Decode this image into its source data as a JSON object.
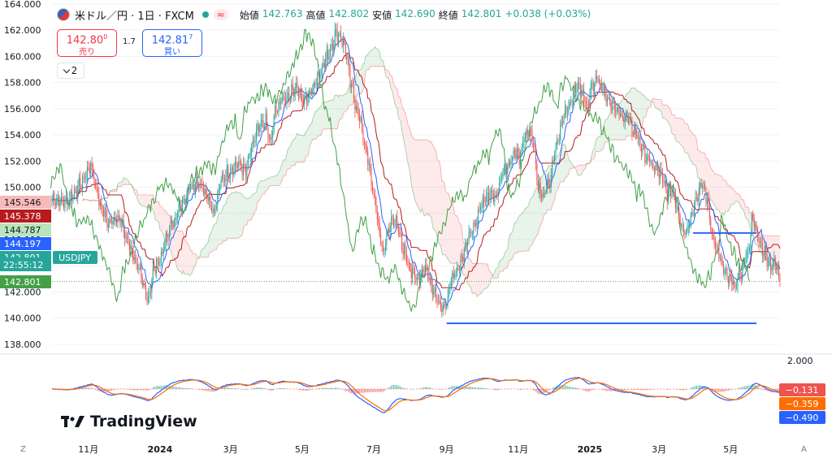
{
  "header": {
    "symbol_title": "米ドル／円 · 1日 · FXCM",
    "approx_symbol": "≈",
    "ohlc": [
      {
        "label": "始値",
        "value": "142.763"
      },
      {
        "label": "高値",
        "value": "142.802"
      },
      {
        "label": "安値",
        "value": "142.690"
      },
      {
        "label": "終値",
        "value": "142.801"
      }
    ],
    "change": "+0.038 (+0.03%)"
  },
  "trade": {
    "sell_price": "142.80",
    "sell_sup": "0",
    "sell_label": "売り",
    "spread": "1.7",
    "buy_price": "142.81",
    "buy_sup": "7",
    "buy_label": "買い"
  },
  "layers_count": "2",
  "branding": "TradingView",
  "bottom_bar": {
    "left": "Z",
    "right": "A"
  },
  "colors": {
    "up": "#26a69a",
    "down": "#ef5350",
    "conversion": "#2962ff",
    "base": "#b71c1c",
    "lagging": "#43a047",
    "macd": "#2962ff",
    "signal": "#ff6d00",
    "support": "#2962ff"
  },
  "chart_data": {
    "type": "candlestick",
    "price_axis": {
      "ticks": [
        "164.000",
        "162.000",
        "160.000",
        "158.000",
        "156.000",
        "154.000",
        "152.000",
        "150.000",
        "148.000",
        "146.000",
        "144.000",
        "142.000",
        "140.000",
        "138.000"
      ],
      "range": [
        137.5,
        164.3
      ]
    },
    "time_axis": {
      "labels": [
        "11月",
        "2024",
        "3月",
        "5月",
        "7月",
        "9月",
        "11月",
        "2025",
        "3月",
        "5月"
      ],
      "label_days": [
        31,
        92,
        152,
        213,
        274,
        336,
        397,
        458,
        517,
        578
      ],
      "day_range": [
        0,
        620
      ],
      "note": "label_days = trading-day index from 2023-10-01"
    },
    "price_badges": [
      {
        "label": "145.546",
        "value": 145.546,
        "color": "#f7b9b9",
        "text_color": "#131722"
      },
      {
        "label": "145.378",
        "value": 145.378,
        "color": "#b71c1c",
        "text_color": "#ffffff"
      },
      {
        "label": "144.787",
        "value": 144.787,
        "color": "#b9e4bd",
        "text_color": "#131722"
      },
      {
        "label": "144.197",
        "value": 144.197,
        "color": "#2962ff",
        "text_color": "#ffffff"
      },
      {
        "label": "142.801",
        "value": 142.801,
        "color": "#26a69a",
        "text_color": "#ffffff"
      },
      {
        "label": "142.801",
        "value": 142.801,
        "color": "#43a047",
        "text_color": "#ffffff"
      }
    ],
    "symbol_tag": "USDJPY",
    "countdown": "22:55:12",
    "last_price": 142.801,
    "support_lines": [
      {
        "from_day": 336,
        "to_day": 600,
        "value": 139.6
      },
      {
        "from_day": 546,
        "to_day": 600,
        "value": 146.5
      }
    ],
    "close_keypoints": [
      [
        0,
        149.2
      ],
      [
        12,
        148.8
      ],
      [
        25,
        150.3
      ],
      [
        33,
        151.7
      ],
      [
        40,
        149.0
      ],
      [
        48,
        147.2
      ],
      [
        56,
        147.8
      ],
      [
        64,
        146.0
      ],
      [
        72,
        144.2
      ],
      [
        78,
        142.3
      ],
      [
        82,
        141.5
      ],
      [
        86,
        143.5
      ],
      [
        94,
        145.0
      ],
      [
        100,
        146.8
      ],
      [
        108,
        148.2
      ],
      [
        116,
        149.8
      ],
      [
        124,
        150.5
      ],
      [
        132,
        149.5
      ],
      [
        138,
        148.0
      ],
      [
        144,
        150.5
      ],
      [
        150,
        151.2
      ],
      [
        158,
        151.8
      ],
      [
        165,
        151.2
      ],
      [
        170,
        153.0
      ],
      [
        176,
        154.5
      ],
      [
        182,
        155.0
      ],
      [
        186,
        153.2
      ],
      [
        190,
        155.8
      ],
      [
        196,
        156.7
      ],
      [
        202,
        157.0
      ],
      [
        208,
        157.8
      ],
      [
        214,
        156.5
      ],
      [
        220,
        157.2
      ],
      [
        226,
        158.5
      ],
      [
        232,
        159.5
      ],
      [
        238,
        160.8
      ],
      [
        242,
        161.8
      ],
      [
        246,
        161.5
      ],
      [
        250,
        160.5
      ],
      [
        254,
        158.0
      ],
      [
        258,
        156.5
      ],
      [
        262,
        155.2
      ],
      [
        266,
        153.5
      ],
      [
        270,
        151.5
      ],
      [
        274,
        149.5
      ],
      [
        278,
        147.0
      ],
      [
        282,
        145.0
      ],
      [
        286,
        146.5
      ],
      [
        290,
        147.8
      ],
      [
        294,
        147.0
      ],
      [
        298,
        145.5
      ],
      [
        302,
        144.7
      ],
      [
        306,
        143.5
      ],
      [
        312,
        143.0
      ],
      [
        318,
        144.0
      ],
      [
        322,
        142.8
      ],
      [
        326,
        142.0
      ],
      [
        330,
        141.2
      ],
      [
        334,
        140.5
      ],
      [
        340,
        142.8
      ],
      [
        344,
        143.5
      ],
      [
        350,
        144.8
      ],
      [
        356,
        146.6
      ],
      [
        362,
        147.7
      ],
      [
        368,
        149.3
      ],
      [
        374,
        149.7
      ],
      [
        378,
        149.0
      ],
      [
        384,
        151.2
      ],
      [
        390,
        151.8
      ],
      [
        394,
        152.8
      ],
      [
        398,
        152.2
      ],
      [
        402,
        153.8
      ],
      [
        406,
        154.5
      ],
      [
        410,
        153.5
      ],
      [
        414,
        150.0
      ],
      [
        418,
        149.2
      ],
      [
        424,
        150.5
      ],
      [
        428,
        152.5
      ],
      [
        432,
        154.0
      ],
      [
        436,
        155.6
      ],
      [
        440,
        156.2
      ],
      [
        444,
        157.2
      ],
      [
        448,
        157.8
      ],
      [
        452,
        157.0
      ],
      [
        456,
        156.2
      ],
      [
        460,
        157.8
      ],
      [
        464,
        158.5
      ],
      [
        468,
        157.8
      ],
      [
        472,
        157.0
      ],
      [
        476,
        156.5
      ],
      [
        480,
        155.8
      ],
      [
        486,
        155.5
      ],
      [
        490,
        155.2
      ],
      [
        494,
        154.5
      ],
      [
        498,
        154.0
      ],
      [
        504,
        152.6
      ],
      [
        510,
        151.8
      ],
      [
        516,
        151.2
      ],
      [
        520,
        150.5
      ],
      [
        524,
        149.5
      ],
      [
        528,
        149.8
      ],
      [
        532,
        148.6
      ],
      [
        536,
        147.2
      ],
      [
        540,
        146.5
      ],
      [
        546,
        148.5
      ],
      [
        550,
        149.5
      ],
      [
        554,
        150.2
      ],
      [
        558,
        149.0
      ],
      [
        562,
        146.5
      ],
      [
        566,
        145.3
      ],
      [
        570,
        144.2
      ],
      [
        574,
        143.2
      ],
      [
        578,
        142.8
      ],
      [
        582,
        142.5
      ],
      [
        586,
        143.2
      ],
      [
        590,
        144.5
      ],
      [
        594,
        145.5
      ],
      [
        596,
        147.8
      ],
      [
        600,
        146.5
      ],
      [
        604,
        145.5
      ],
      [
        608,
        144.8
      ],
      [
        612,
        144.0
      ],
      [
        616,
        144.2
      ],
      [
        620,
        142.8
      ]
    ],
    "ichimoku": {
      "conversion_period": 9,
      "base_period": 26,
      "span_b_period": 52,
      "displacement": 26
    },
    "macd": {
      "axis_label": "2.000",
      "badges": [
        {
          "label": "−0.131",
          "color": "#ef5350"
        },
        {
          "label": "−0.359",
          "color": "#ff6d00"
        },
        {
          "label": "−0.490",
          "color": "#2962ff"
        }
      ]
    }
  }
}
